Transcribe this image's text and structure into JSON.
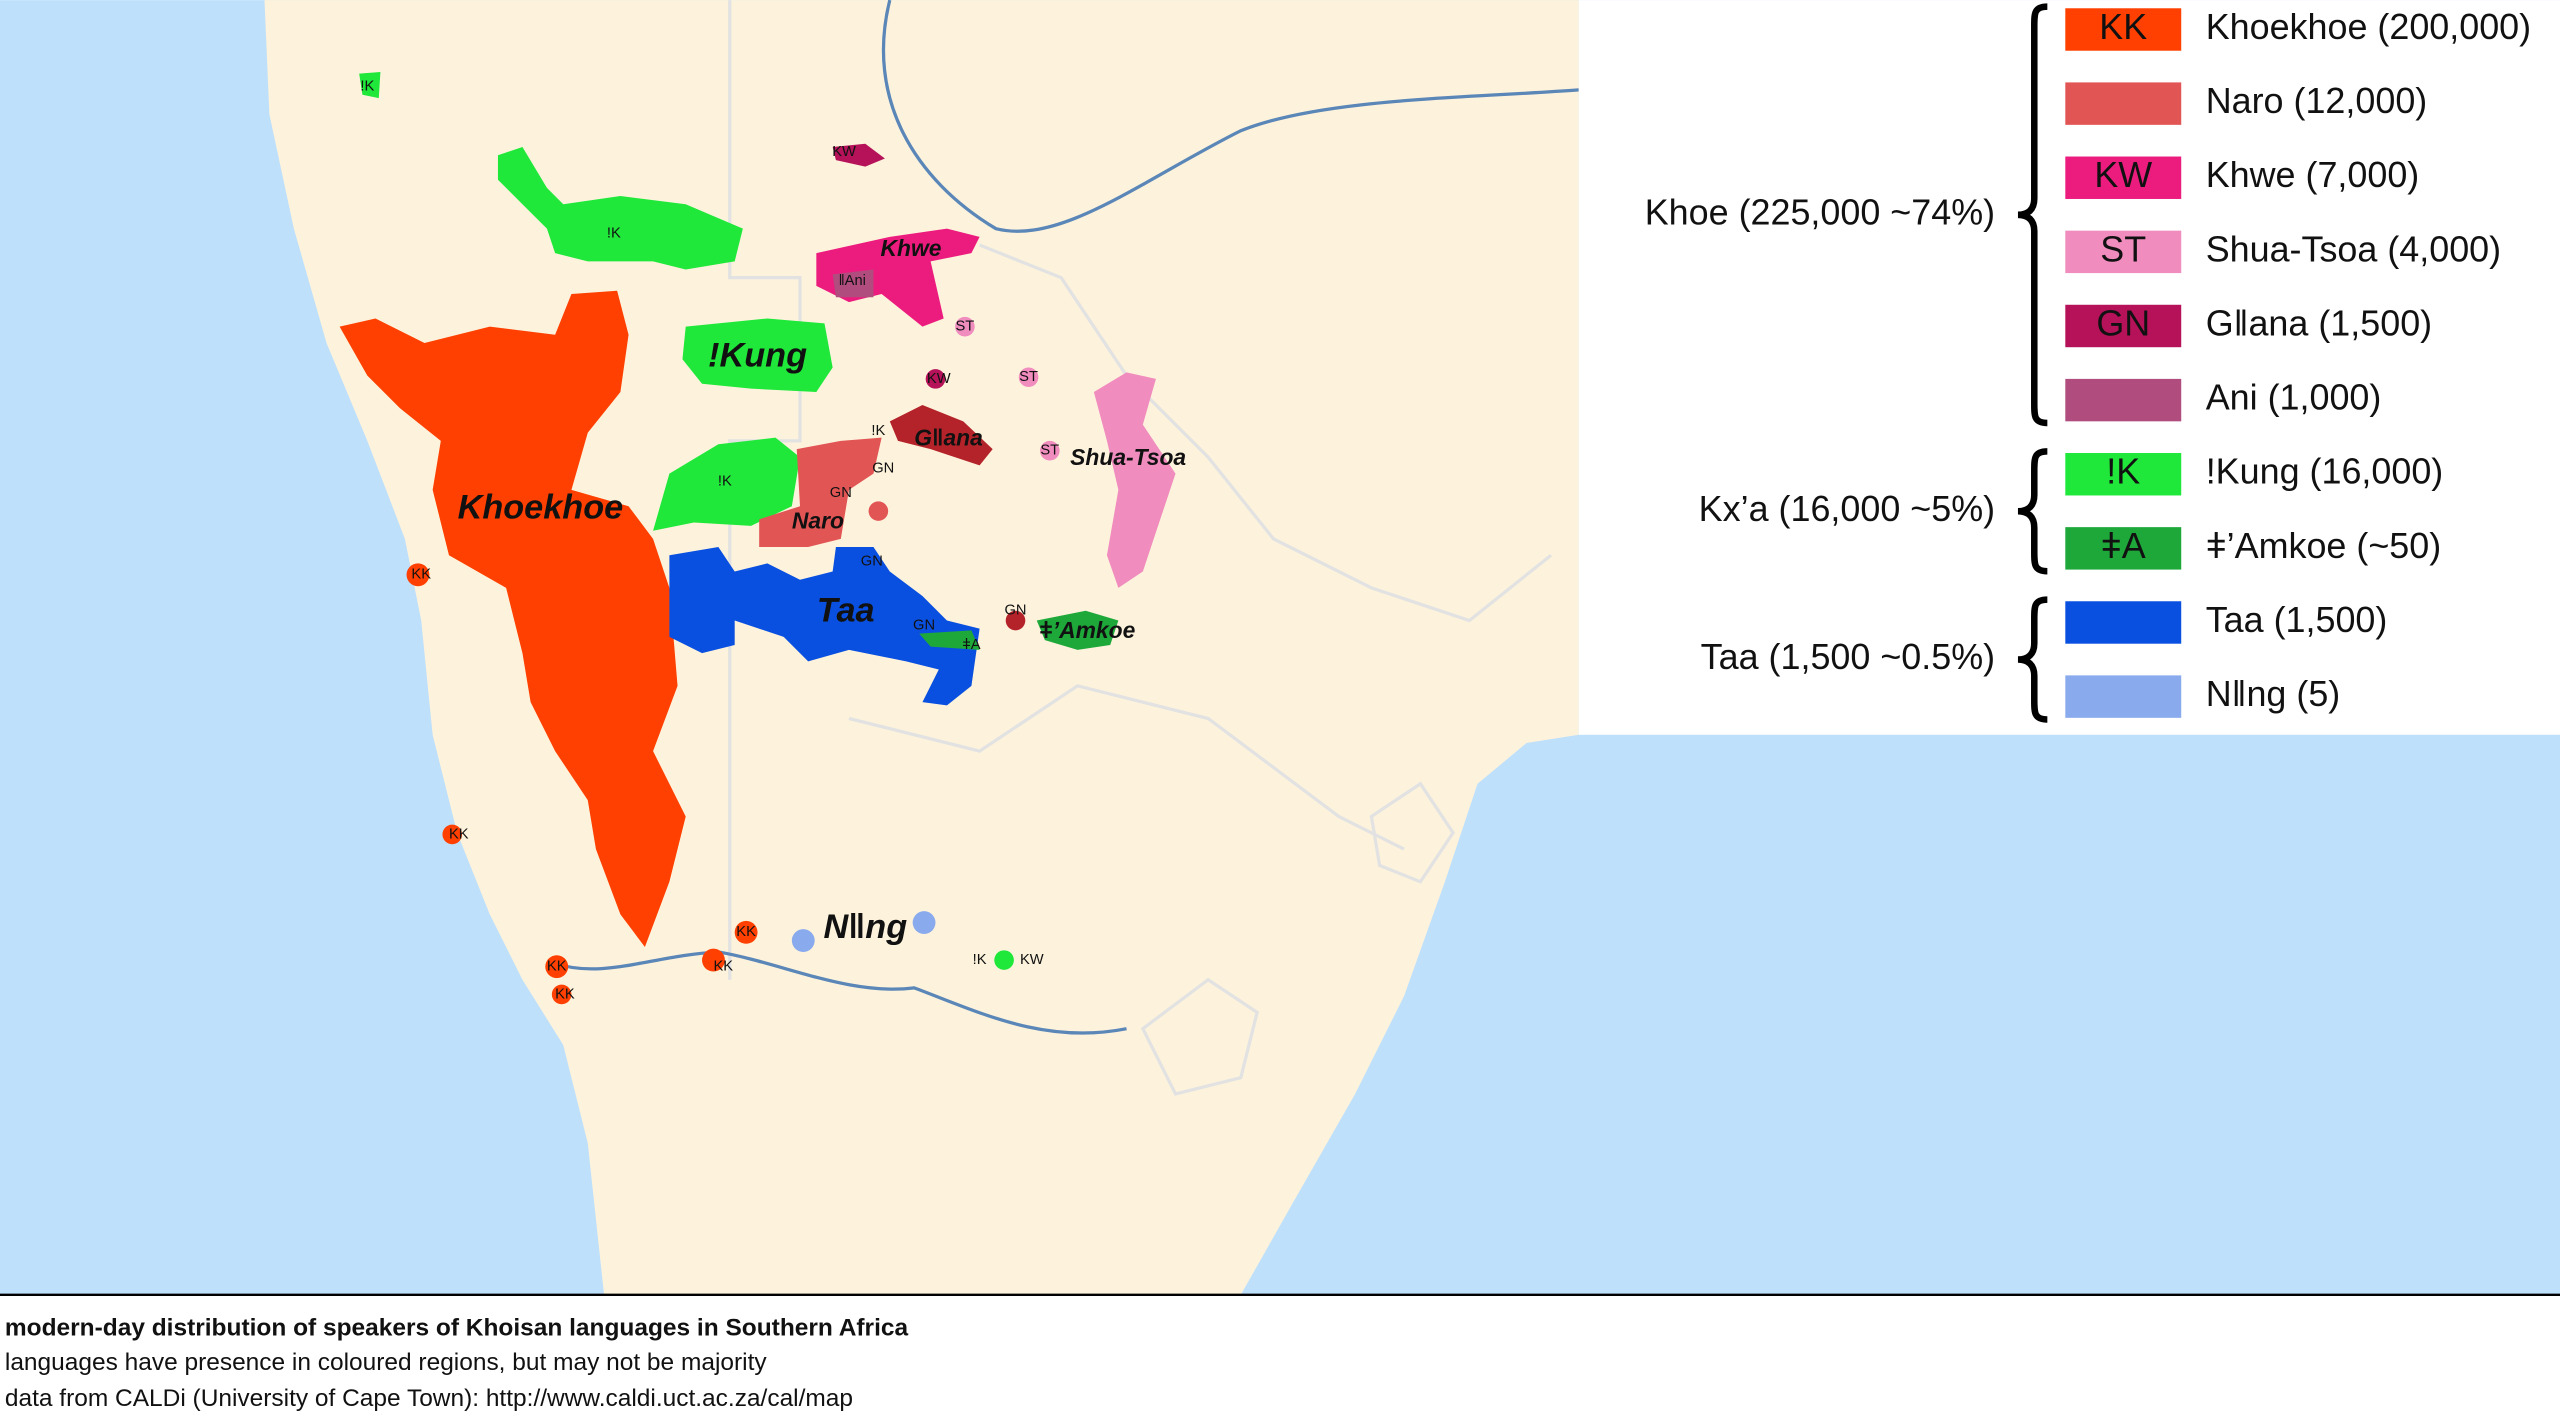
{
  "legend": {
    "groups": [
      {
        "label": "Khoe (225,000  ~74%)",
        "items": [
          {
            "code": "KK",
            "name": "Khoekhoe (200,000)",
            "color": "#ff4000"
          },
          {
            "code": "",
            "name": "Naro (12,000)",
            "color": "#e25555"
          },
          {
            "code": "KW",
            "name": "Khwe (7,000)",
            "color": "#ec1c7f"
          },
          {
            "code": "ST",
            "name": "Shua-Tsoa (4,000)",
            "color": "#f08cbe"
          },
          {
            "code": "GN",
            "name": "Gǁana (1,500)",
            "color": "#b5125a"
          },
          {
            "code": "",
            "name": "Ani (1,000)",
            "color": "#b04d7e"
          }
        ]
      },
      {
        "label": "Kx’a (16,000  ~5%)",
        "items": [
          {
            "code": "!K",
            "name": "!Kung (16,000)",
            "color": "#1fe83a"
          },
          {
            "code": "ǂA",
            "name": "ǂ’Amkoe (~50)",
            "color": "#1ea83a"
          }
        ]
      },
      {
        "label": "Taa (1,500  ~0.5%)",
        "items": [
          {
            "code": "",
            "name": "Taa (1,500)",
            "color": "#0a50e0"
          },
          {
            "code": "",
            "name": "Nǁng (5)",
            "color": "#8aaaee"
          }
        ]
      }
    ]
  },
  "map": {
    "labels": [
      "!K",
      "KW",
      "!K",
      "Khwe",
      "ǁAni",
      "ST",
      "!Kung",
      "KW",
      "ST",
      "!K",
      "Gǁana",
      "ST",
      "Shua-Tsoa",
      "!K",
      "GN",
      "GN",
      "Khoekhoe",
      "Naro",
      "KK",
      "GN",
      "Taa",
      "GN",
      "ǂA",
      "GN",
      "ǂ’Amkoe",
      "KK",
      "KK",
      "Nǁng",
      "!K",
      "KW",
      "KK",
      "KK",
      "KK"
    ]
  },
  "caption": {
    "lines": [
      "modern-day distribution of speakers of Khoisan languages in Southern Africa",
      "languages have presence in coloured regions, but may not be majority",
      "data from CALDi (University of Cape Town):  http://www.caldi.uct.ac.za/cal/map"
    ]
  }
}
